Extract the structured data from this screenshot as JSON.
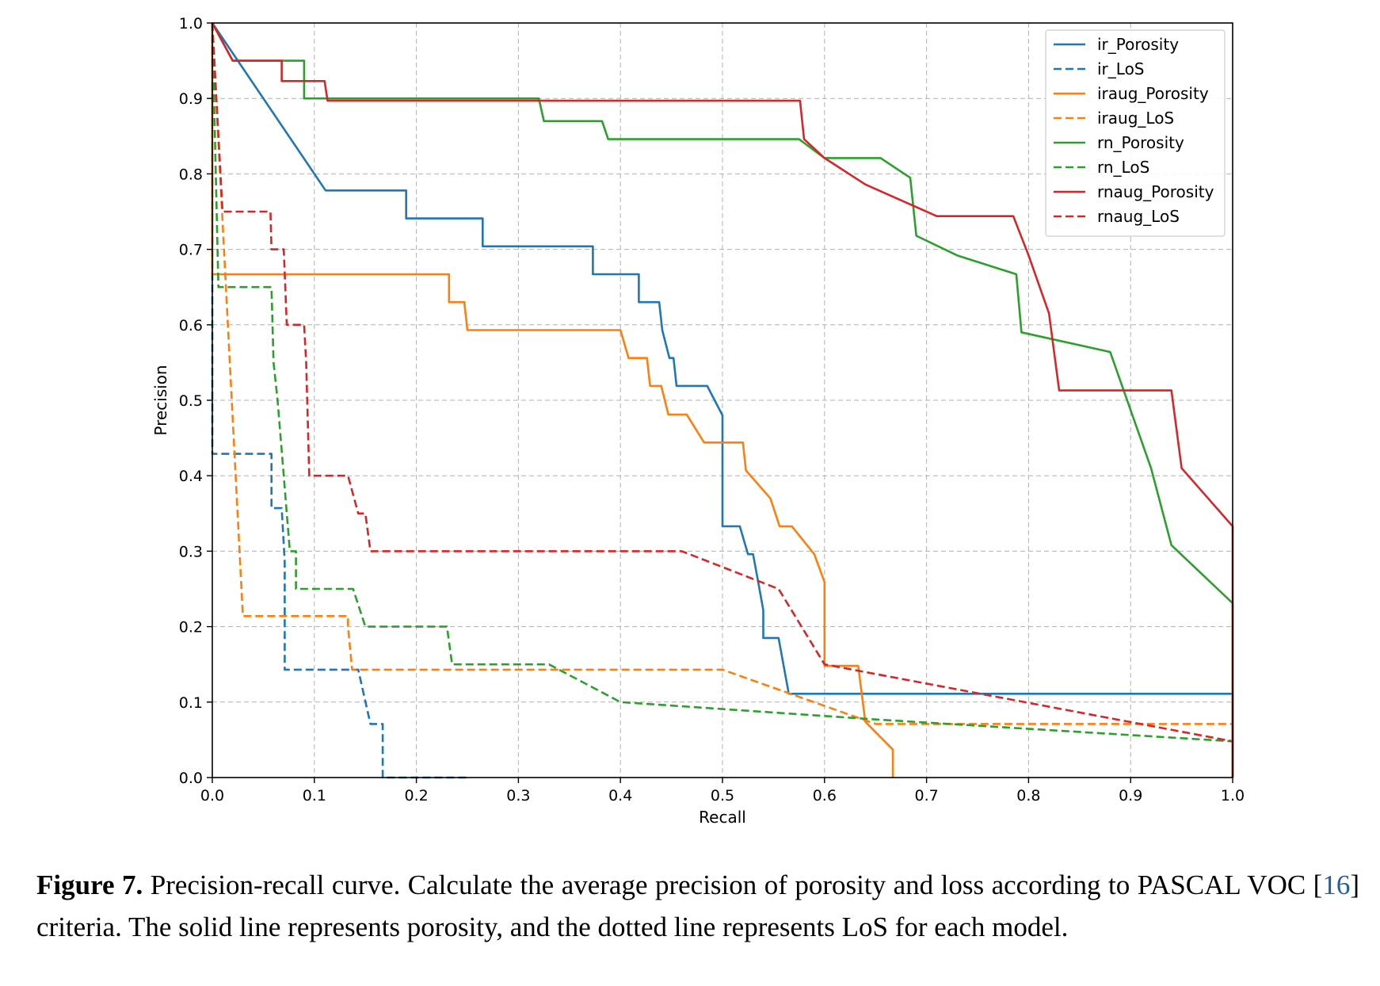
{
  "chart_data": {
    "type": "line",
    "title": "",
    "xlabel": "Recall",
    "ylabel": "Precision",
    "xlim": [
      0.0,
      1.0
    ],
    "ylim": [
      0.0,
      1.0
    ],
    "xticks": [
      "0.0",
      "0.1",
      "0.2",
      "0.3",
      "0.4",
      "0.5",
      "0.6",
      "0.7",
      "0.8",
      "0.9",
      "1.0"
    ],
    "yticks": [
      "0.0",
      "0.1",
      "0.2",
      "0.3",
      "0.4",
      "0.5",
      "0.6",
      "0.7",
      "0.8",
      "0.9",
      "1.0"
    ],
    "grid": true,
    "legend_position": "top-right",
    "series": [
      {
        "name": "ir_Porosity",
        "color": "#1f77b4",
        "style": "solid",
        "x": [
          0.0,
          0.111,
          0.111,
          0.19,
          0.19,
          0.265,
          0.265,
          0.373,
          0.373,
          0.418,
          0.418,
          0.438,
          0.441,
          0.448,
          0.452,
          0.455,
          0.455,
          0.485,
          0.5,
          0.5,
          0.517,
          0.525,
          0.53,
          0.535,
          0.54,
          0.54,
          0.555,
          0.565,
          0.565,
          1.0,
          1.0
        ],
        "y": [
          1.0,
          0.778,
          0.778,
          0.778,
          0.741,
          0.741,
          0.704,
          0.704,
          0.667,
          0.667,
          0.63,
          0.63,
          0.593,
          0.556,
          0.556,
          0.519,
          0.519,
          0.519,
          0.48,
          0.333,
          0.333,
          0.296,
          0.296,
          0.259,
          0.222,
          0.185,
          0.185,
          0.111,
          0.111,
          0.111,
          0.0
        ]
      },
      {
        "name": "ir_LoS",
        "color": "#1f77b4",
        "style": "dashed",
        "x": [
          0.0,
          0.0,
          0.058,
          0.058,
          0.068,
          0.071,
          0.071,
          0.143,
          0.155,
          0.155,
          0.167,
          0.167,
          0.25
        ],
        "y": [
          1.0,
          0.429,
          0.429,
          0.357,
          0.357,
          0.286,
          0.143,
          0.143,
          0.071,
          0.071,
          0.071,
          0.0,
          0.0
        ]
      },
      {
        "name": "iraug_Porosity",
        "color": "#ff7f0e",
        "style": "solid",
        "x": [
          0.0,
          0.0,
          0.232,
          0.232,
          0.247,
          0.25,
          0.4,
          0.4,
          0.408,
          0.426,
          0.429,
          0.44,
          0.447,
          0.447,
          0.465,
          0.482,
          0.5,
          0.52,
          0.523,
          0.547,
          0.556,
          0.568,
          0.59,
          0.6,
          0.6,
          0.633,
          0.64,
          0.667,
          0.667
        ],
        "y": [
          1.0,
          0.667,
          0.667,
          0.63,
          0.63,
          0.593,
          0.593,
          0.593,
          0.556,
          0.556,
          0.519,
          0.519,
          0.481,
          0.481,
          0.481,
          0.444,
          0.444,
          0.444,
          0.407,
          0.37,
          0.333,
          0.333,
          0.296,
          0.259,
          0.148,
          0.148,
          0.074,
          0.037,
          0.0
        ]
      },
      {
        "name": "iraug_LoS",
        "color": "#ff7f0e",
        "style": "dashed",
        "x": [
          0.0,
          0.03,
          0.03,
          0.133,
          0.133,
          0.137,
          0.5,
          0.65,
          1.0,
          1.0
        ],
        "y": [
          1.0,
          0.214,
          0.214,
          0.214,
          0.2,
          0.143,
          0.143,
          0.071,
          0.071,
          0.0
        ]
      },
      {
        "name": "rn_Porosity",
        "color": "#2ca02c",
        "style": "solid",
        "x": [
          0.0,
          0.02,
          0.09,
          0.09,
          0.095,
          0.32,
          0.325,
          0.382,
          0.388,
          0.57,
          0.575,
          0.6,
          0.61,
          0.655,
          0.684,
          0.69,
          0.73,
          0.788,
          0.793,
          0.88,
          0.9,
          0.92,
          0.94,
          1.0,
          1.0
        ],
        "y": [
          1.0,
          0.95,
          0.95,
          0.9,
          0.9,
          0.9,
          0.87,
          0.87,
          0.846,
          0.846,
          0.846,
          0.821,
          0.821,
          0.821,
          0.795,
          0.718,
          0.692,
          0.667,
          0.59,
          0.564,
          0.487,
          0.41,
          0.308,
          0.231,
          0.0
        ]
      },
      {
        "name": "rn_LoS",
        "color": "#2ca02c",
        "style": "dashed",
        "x": [
          0.0,
          0.006,
          0.006,
          0.058,
          0.06,
          0.064,
          0.067,
          0.07,
          0.073,
          0.076,
          0.082,
          0.082,
          0.138,
          0.15,
          0.23,
          0.235,
          0.33,
          0.4,
          0.65,
          1.0
        ],
        "y": [
          1.0,
          0.65,
          0.65,
          0.65,
          0.55,
          0.5,
          0.45,
          0.4,
          0.35,
          0.3,
          0.3,
          0.25,
          0.25,
          0.2,
          0.2,
          0.15,
          0.15,
          0.1,
          0.077,
          0.048
        ]
      },
      {
        "name": "rnaug_Porosity",
        "color": "#d62728",
        "style": "solid",
        "x": [
          0.0,
          0.02,
          0.068,
          0.068,
          0.11,
          0.113,
          0.576,
          0.58,
          0.6,
          0.64,
          0.71,
          0.785,
          0.8,
          0.82,
          0.83,
          0.94,
          0.95,
          1.0,
          1.0
        ],
        "y": [
          1.0,
          0.95,
          0.95,
          0.923,
          0.923,
          0.897,
          0.897,
          0.846,
          0.821,
          0.786,
          0.744,
          0.744,
          0.692,
          0.615,
          0.513,
          0.513,
          0.41,
          0.333,
          0.0
        ]
      },
      {
        "name": "rnaug_LoS",
        "color": "#d62728",
        "style": "dashed",
        "x": [
          0.0,
          0.01,
          0.01,
          0.057,
          0.058,
          0.07,
          0.073,
          0.09,
          0.092,
          0.095,
          0.133,
          0.143,
          0.15,
          0.155,
          0.46,
          0.555,
          0.6,
          0.6,
          1.0
        ],
        "y": [
          1.0,
          0.75,
          0.75,
          0.75,
          0.7,
          0.7,
          0.6,
          0.6,
          0.55,
          0.4,
          0.4,
          0.35,
          0.35,
          0.3,
          0.3,
          0.25,
          0.15,
          0.15,
          0.048
        ]
      }
    ]
  },
  "caption": {
    "label": "Figure 7.",
    "text_before_ref": " Precision-recall curve. Calculate the average precision of porosity and loss according to PASCAL VOC [",
    "ref": "16",
    "text_after_ref": "] criteria. The solid line represents porosity, and the dotted line represents LoS for each model."
  }
}
